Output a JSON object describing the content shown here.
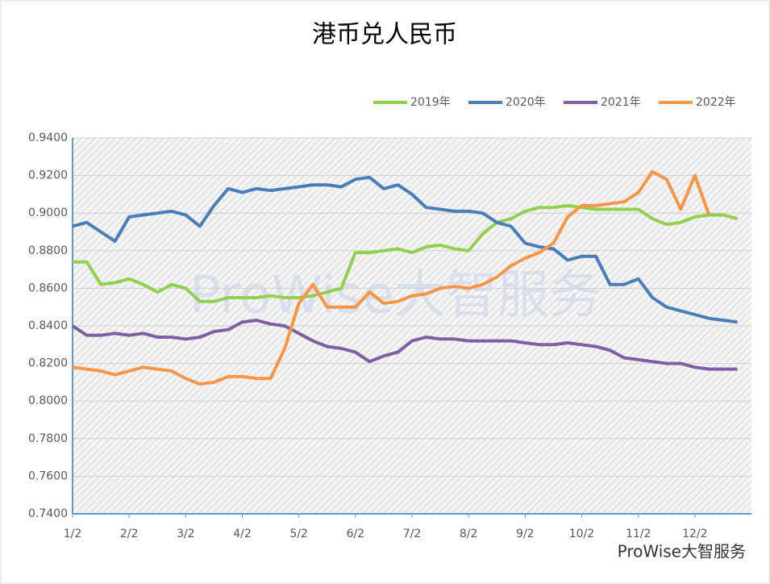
{
  "chart_data": {
    "type": "line",
    "title": "港币兑人民币",
    "watermark": "ProWise大智服务",
    "footer": "ProWise大智服务",
    "categories": [
      "1/2",
      null,
      null,
      null,
      "2/2",
      null,
      null,
      null,
      "3/2",
      null,
      null,
      null,
      "4/2",
      null,
      null,
      null,
      "5/2",
      null,
      null,
      null,
      "6/2",
      null,
      null,
      null,
      "7/2",
      null,
      null,
      null,
      "8/2",
      null,
      null,
      null,
      "9/2",
      null,
      null,
      null,
      "10/2",
      null,
      null,
      null,
      "11/2",
      null,
      null,
      null,
      "12/2",
      null,
      null,
      null
    ],
    "series": [
      {
        "name": "2019年",
        "color": "#92d050",
        "values": [
          0.874,
          0.874,
          0.862,
          0.863,
          0.865,
          0.862,
          0.858,
          0.862,
          0.86,
          0.853,
          0.853,
          0.855,
          0.855,
          0.855,
          0.856,
          0.855,
          0.855,
          0.856,
          0.858,
          0.86,
          0.879,
          0.879,
          0.88,
          0.881,
          0.879,
          0.882,
          0.883,
          0.881,
          0.88,
          0.889,
          0.895,
          0.897,
          0.901,
          0.903,
          0.903,
          0.904,
          0.903,
          0.902,
          0.902,
          0.902,
          0.902,
          0.897,
          0.894,
          0.895,
          0.898,
          0.899,
          0.899,
          0.897
        ]
      },
      {
        "name": "2020年",
        "color": "#4a7ebb",
        "values": [
          0.893,
          0.895,
          0.89,
          0.885,
          0.898,
          0.899,
          0.9,
          0.901,
          0.899,
          0.893,
          0.904,
          0.913,
          0.911,
          0.913,
          0.912,
          0.913,
          0.914,
          0.915,
          0.915,
          0.914,
          0.918,
          0.919,
          0.913,
          0.915,
          0.91,
          0.903,
          0.902,
          0.901,
          0.901,
          0.9,
          0.895,
          0.893,
          0.884,
          0.882,
          0.881,
          0.875,
          0.877,
          0.877,
          0.862,
          0.862,
          0.865,
          0.855,
          0.85,
          0.848,
          0.846,
          0.844,
          0.843,
          0.842
        ]
      },
      {
        "name": "2021年",
        "color": "#7f5fa3",
        "values": [
          0.84,
          0.835,
          0.835,
          0.836,
          0.835,
          0.836,
          0.834,
          0.834,
          0.833,
          0.834,
          0.837,
          0.838,
          0.842,
          0.843,
          0.841,
          0.84,
          0.836,
          0.832,
          0.829,
          0.828,
          0.826,
          0.821,
          0.824,
          0.826,
          0.832,
          0.834,
          0.833,
          0.833,
          0.832,
          0.832,
          0.832,
          0.832,
          0.831,
          0.83,
          0.83,
          0.831,
          0.83,
          0.829,
          0.827,
          0.823,
          0.822,
          0.821,
          0.82,
          0.82,
          0.818,
          0.817,
          0.817,
          0.817
        ]
      },
      {
        "name": "2022年",
        "color": "#f79646",
        "values": [
          0.818,
          0.817,
          0.816,
          0.814,
          0.816,
          0.818,
          0.817,
          0.816,
          0.812,
          0.809,
          0.81,
          0.813,
          0.813,
          0.812,
          0.812,
          0.828,
          0.852,
          0.862,
          0.85,
          0.85,
          0.85,
          0.858,
          0.852,
          0.853,
          0.856,
          0.857,
          0.86,
          0.861,
          0.86,
          0.862,
          0.866,
          0.872,
          0.876,
          0.879,
          0.884,
          0.898,
          0.904,
          0.904,
          0.905,
          0.906,
          0.911,
          0.922,
          0.918,
          0.902,
          0.92,
          0.899,
          null,
          null
        ]
      }
    ],
    "ylim": [
      0.74,
      0.94
    ],
    "yticks": [
      {
        "value": 0.74,
        "label": "0.7400"
      },
      {
        "value": 0.76,
        "label": "0.7600"
      },
      {
        "value": 0.78,
        "label": "0.7800"
      },
      {
        "value": 0.8,
        "label": "0.8000"
      },
      {
        "value": 0.82,
        "label": "0.8200"
      },
      {
        "value": 0.84,
        "label": "0.8400"
      },
      {
        "value": 0.86,
        "label": "0.8600"
      },
      {
        "value": 0.88,
        "label": "0.8800"
      },
      {
        "value": 0.9,
        "label": "0.9000"
      },
      {
        "value": 0.92,
        "label": "0.9200"
      },
      {
        "value": 0.94,
        "label": "0.9400"
      }
    ],
    "grid": true,
    "legend": "top-right"
  }
}
